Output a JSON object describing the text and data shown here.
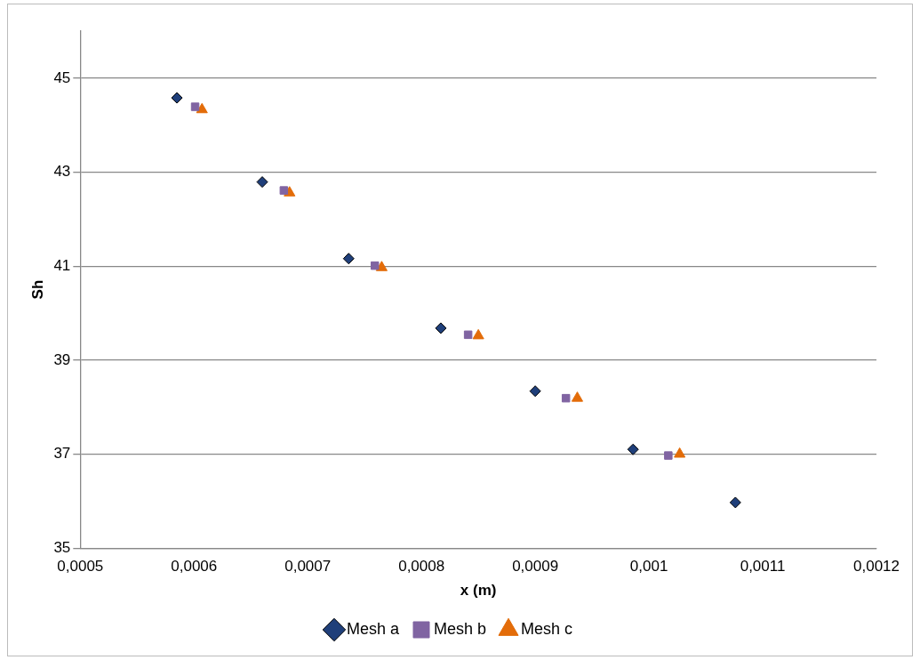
{
  "chart_data": {
    "type": "scatter",
    "xlabel": "x (m)",
    "ylabel": "Sh",
    "xlim": [
      0.0005,
      0.0012
    ],
    "xticks": [
      {
        "value": 0.0005,
        "label": "0,0005"
      },
      {
        "value": 0.0006,
        "label": "0,0006"
      },
      {
        "value": 0.0007,
        "label": "0,0007"
      },
      {
        "value": 0.0008,
        "label": "0,0008"
      },
      {
        "value": 0.0009,
        "label": "0,0009"
      },
      {
        "value": 0.001,
        "label": "0,001"
      },
      {
        "value": 0.0011,
        "label": "0,0011"
      },
      {
        "value": 0.0012,
        "label": "0,0012"
      }
    ],
    "ylim": [
      35,
      46
    ],
    "yticks": [
      35,
      37,
      39,
      41,
      43,
      45
    ],
    "grid": "y",
    "legend": "bottom",
    "series": [
      {
        "name": "Mesh a",
        "color": "#1f3f7a",
        "marker": "diamond",
        "x": [
          0.000585,
          0.00066,
          0.000736,
          0.000817,
          0.0009,
          0.000986,
          0.001076
        ],
        "values": [
          44.58,
          42.79,
          41.16,
          39.68,
          38.34,
          37.1,
          35.97
        ]
      },
      {
        "name": "Mesh b",
        "color": "#8064a2",
        "marker": "square",
        "x": [
          0.000601,
          0.000679,
          0.000759,
          0.000841,
          0.000927,
          0.001017
        ],
        "values": [
          44.39,
          42.61,
          41.01,
          39.54,
          38.19,
          36.97
        ]
      },
      {
        "name": "Mesh c",
        "color": "#e36c09",
        "marker": "triangle",
        "x": [
          0.000607,
          0.000684,
          0.000765,
          0.00085,
          0.000937,
          0.001027
        ],
        "values": [
          44.33,
          42.56,
          40.97,
          39.52,
          38.19,
          37.0
        ]
      }
    ]
  }
}
